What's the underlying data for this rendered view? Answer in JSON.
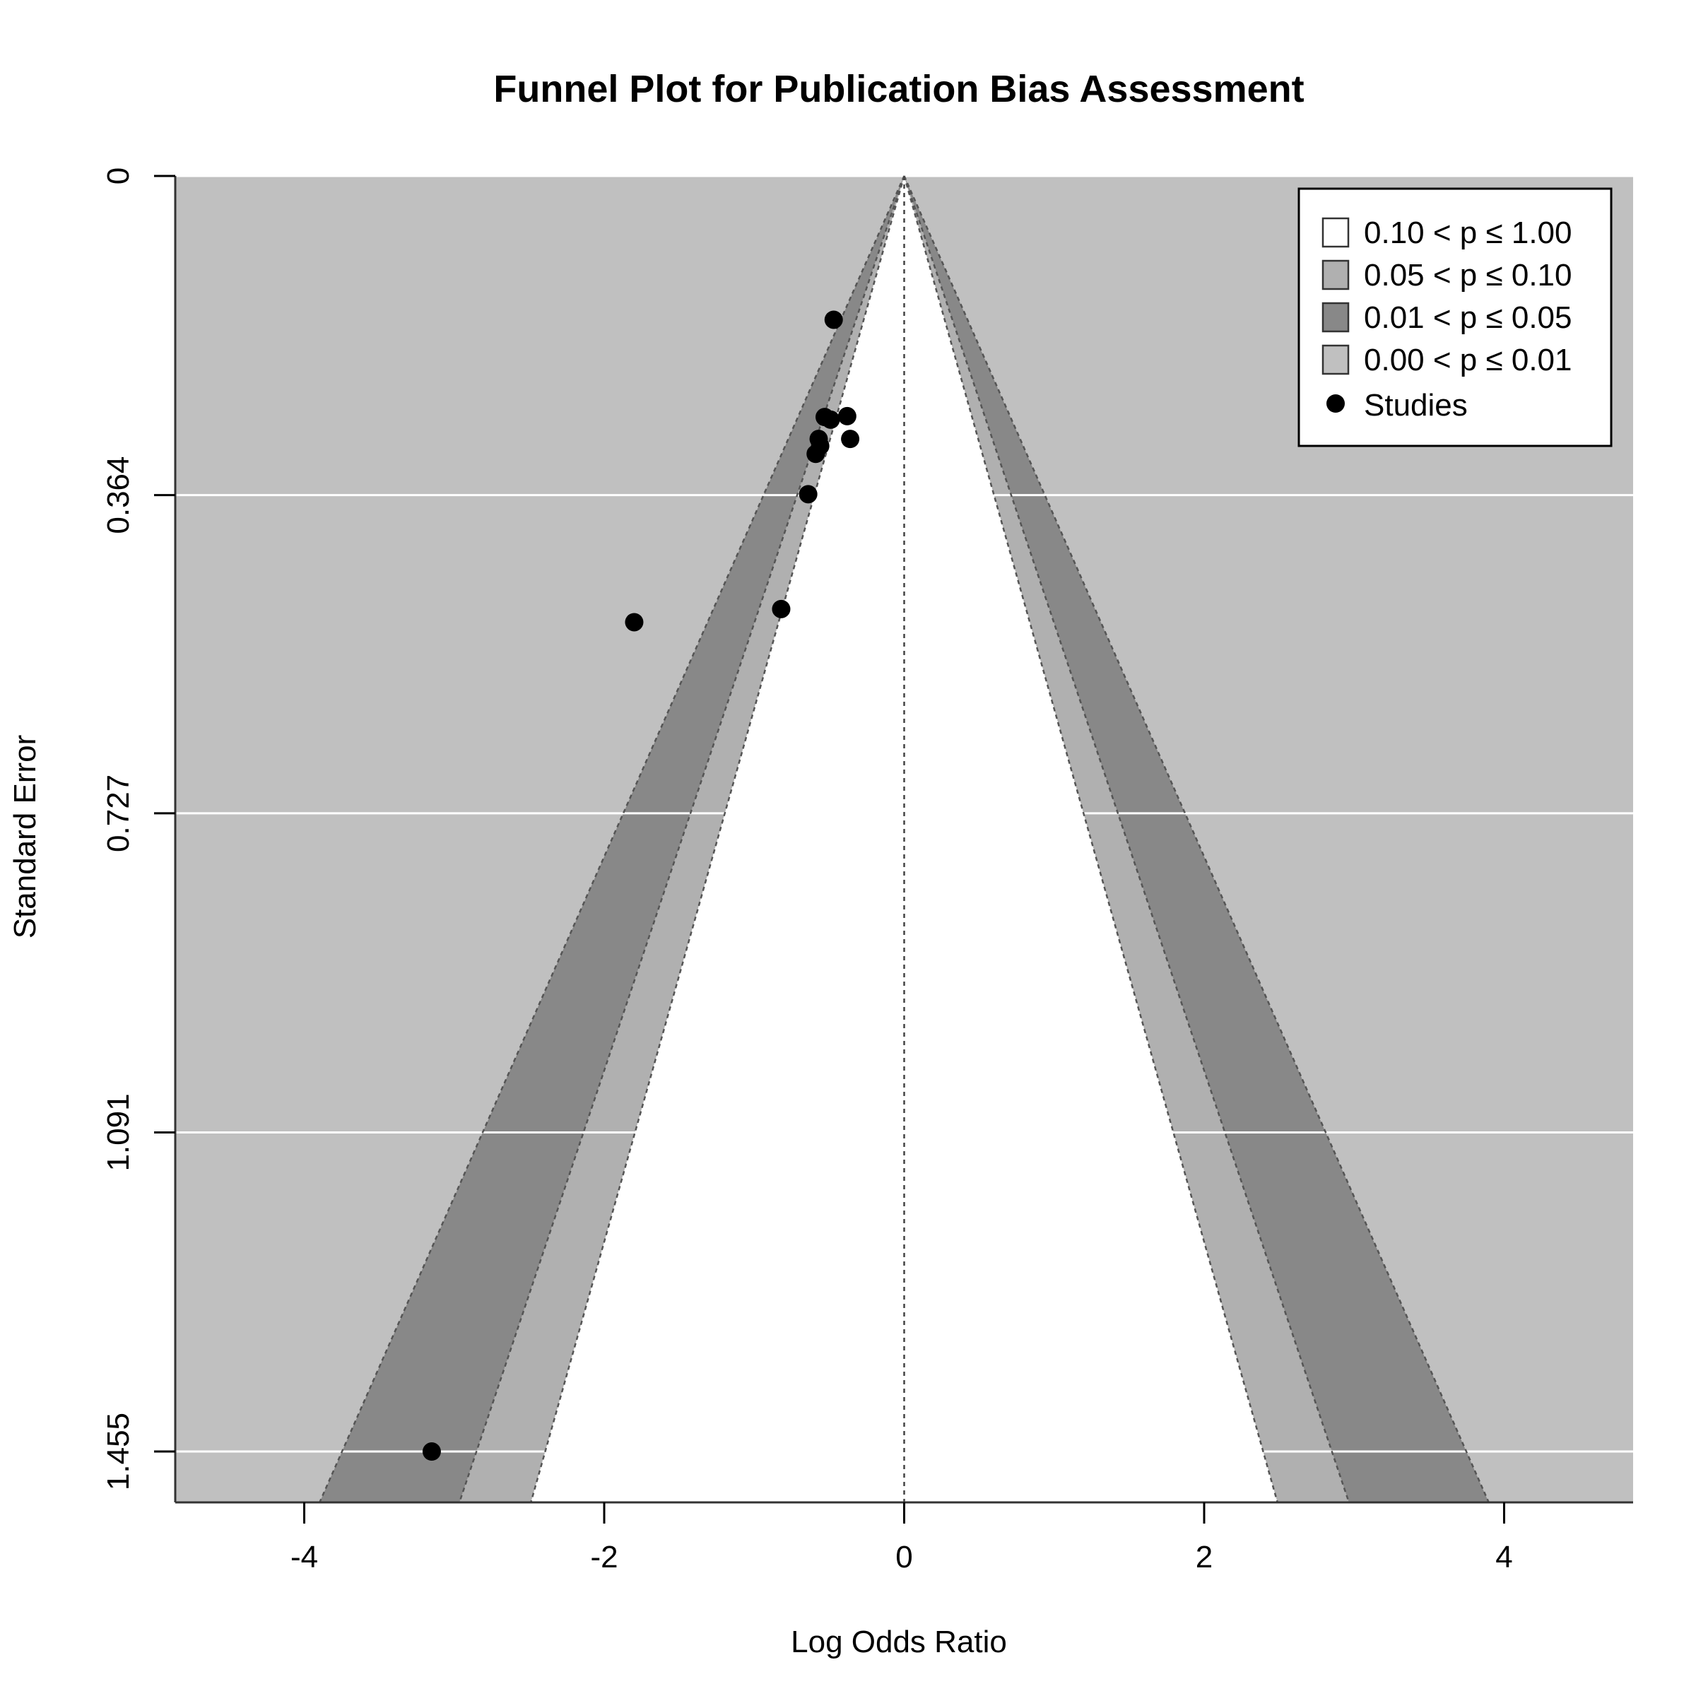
{
  "chart_data": {
    "type": "scatter",
    "title": "Funnel Plot for Publication Bias Assessment",
    "xlabel": "Log Odds Ratio",
    "ylabel": "Standard Error",
    "xlim": [
      -4.86,
      4.86
    ],
    "ylim": [
      1.513,
      0
    ],
    "y_reversed": true,
    "x_ticks": [
      -4,
      -2,
      0,
      2,
      4
    ],
    "x_tick_labels": [
      "-4",
      "-2",
      "0",
      "2",
      "4"
    ],
    "y_ticks": [
      0,
      0.364,
      0.727,
      1.091,
      1.455
    ],
    "y_tick_labels": [
      "0",
      "0.364",
      "0.727",
      "1.091",
      "1.455"
    ],
    "center": 0,
    "contour_levels": [
      {
        "label": "0.10 < p ≤ 1.00",
        "z": 1.645,
        "color": "#ffffff"
      },
      {
        "label": "0.05 < p ≤ 0.10",
        "z": 1.96,
        "color": "#b0b0b0"
      },
      {
        "label": "0.01 < p ≤ 0.05",
        "z": 2.576,
        "color": "#888888"
      },
      {
        "label": "0.00 < p ≤ 0.01",
        "z": null,
        "color": "#c0c0c0"
      }
    ],
    "background_color": "#c0c0c0",
    "grid": true,
    "legend_position": "top-right",
    "series": [
      {
        "name": "Studies",
        "color": "#000000",
        "points": [
          {
            "x": -0.47,
            "y": 0.164
          },
          {
            "x": -0.53,
            "y": 0.275
          },
          {
            "x": -0.49,
            "y": 0.278
          },
          {
            "x": -0.38,
            "y": 0.274
          },
          {
            "x": -0.57,
            "y": 0.3
          },
          {
            "x": -0.56,
            "y": 0.308
          },
          {
            "x": -0.36,
            "y": 0.3
          },
          {
            "x": -0.59,
            "y": 0.317
          },
          {
            "x": -0.64,
            "y": 0.363
          },
          {
            "x": -0.82,
            "y": 0.494
          },
          {
            "x": -1.8,
            "y": 0.509
          },
          {
            "x": -3.15,
            "y": 1.455
          }
        ]
      }
    ]
  }
}
